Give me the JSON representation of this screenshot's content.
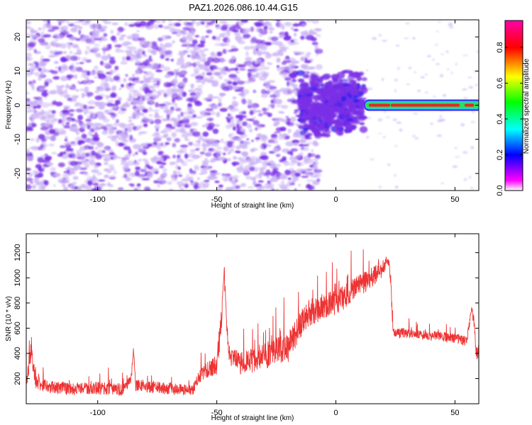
{
  "figure_title": "PAZ1.2026.086.10.44.G15",
  "colors": {
    "snr_line": "#ee3333",
    "speckle": "#7a2ee6",
    "speckle_light": "#c9b0f5",
    "trail_red": "#ee2222",
    "trail_green": "#33dd55",
    "trail_cyan": "#22ccee",
    "trail_blue": "#3322ee"
  },
  "chart_data": [
    {
      "type": "heatmap",
      "title": "PAZ1.2026.086.10.44.G15",
      "xlabel": "Height of straight line (km)",
      "ylabel": "Frequency (Hz)",
      "xlim": [
        -130,
        60
      ],
      "ylim": [
        -25,
        25
      ],
      "x_ticks": [
        -100,
        -50,
        0,
        50
      ],
      "x_tick_labels": [
        "-100",
        "-50",
        "0",
        "50"
      ],
      "y_ticks": [
        -20,
        -10,
        0,
        10,
        20
      ],
      "y_tick_labels": [
        "-20",
        "-10",
        "0",
        "10",
        "20"
      ],
      "colorbar": {
        "label": "Normalized spectral amplitude",
        "range": [
          0,
          0.95
        ],
        "ticks": [
          0,
          0.2,
          0.4,
          0.6,
          0.8
        ],
        "tick_labels": [
          "0.0",
          "0.2",
          "0.4",
          "0.6",
          "0.8"
        ],
        "colormap": [
          "#ffffff",
          "#ff00ff",
          "#0000ff",
          "#00ffff",
          "#00ff00",
          "#ffff00",
          "#ff0000",
          "#ff00aa"
        ]
      },
      "features": [
        {
          "name": "noise speckle",
          "x_range": [
            -130,
            -15
          ],
          "freq_range": [
            -25,
            25
          ],
          "amplitude": 0.05
        },
        {
          "name": "dense cluster",
          "x_range": [
            -15,
            12
          ],
          "freq_range": [
            -10,
            10
          ],
          "amplitude": 0.15
        },
        {
          "name": "tracked carrier",
          "x_range": [
            12,
            60
          ],
          "freq_center": 0,
          "amplitude": 0.85
        }
      ]
    },
    {
      "type": "line",
      "title": "",
      "xlabel": "Height of straight line (km)",
      "ylabel": "SNR (10 * v/v)",
      "xlim": [
        -130,
        60
      ],
      "ylim": [
        0,
        1350
      ],
      "x_ticks": [
        -100,
        -50,
        0,
        50
      ],
      "x_tick_labels": [
        "-100",
        "-50",
        "0",
        "50"
      ],
      "y_ticks": [
        200,
        400,
        600,
        800,
        1000,
        1200
      ],
      "y_tick_labels": [
        "200",
        "400",
        "600",
        "800",
        "1000",
        "1200"
      ],
      "series": [
        {
          "name": "SNR",
          "x": [
            -130,
            -128,
            -126,
            -120,
            -110,
            -100,
            -90,
            -86,
            -85,
            -84,
            -80,
            -70,
            -60,
            -58,
            -55,
            -50,
            -48,
            -47,
            -46,
            -45,
            -44,
            -40,
            -35,
            -30,
            -25,
            -20,
            -18,
            -15,
            -12,
            -10,
            -5,
            0,
            5,
            10,
            15,
            20,
            22,
            23,
            24,
            30,
            40,
            50,
            55,
            57,
            58,
            59,
            60
          ],
          "values": [
            150,
            420,
            170,
            130,
            120,
            125,
            110,
            190,
            420,
            150,
            140,
            120,
            110,
            200,
            260,
            320,
            680,
            1100,
            700,
            430,
            380,
            320,
            340,
            380,
            420,
            440,
            520,
            620,
            720,
            730,
            780,
            800,
            870,
            940,
            1000,
            1080,
            1150,
            980,
            560,
            560,
            540,
            520,
            500,
            760,
            650,
            400,
            420
          ],
          "noise": [
            100,
            150,
            100,
            110,
            100,
            100,
            100,
            80,
            60,
            100,
            100,
            100,
            80,
            90,
            120,
            180,
            250,
            200,
            150,
            150,
            160,
            190,
            200,
            220,
            230,
            230,
            220,
            220,
            220,
            220,
            200,
            200,
            190,
            180,
            160,
            130,
            100,
            90,
            80,
            80,
            80,
            80,
            80,
            90,
            90,
            110,
            100
          ]
        }
      ]
    }
  ]
}
